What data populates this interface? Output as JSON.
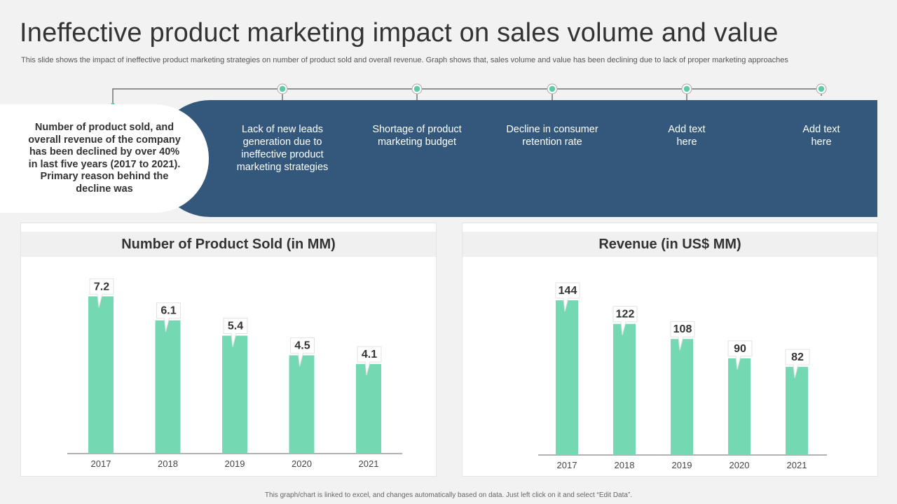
{
  "page": {
    "title": "Ineffective product marketing impact on sales volume and value",
    "subtitle": "This slide shows the impact of ineffective  product marketing strategies on number of product sold and overall revenue.  Graph shows that, sales volume and value has been declining due to lack of proper marketing approaches",
    "footer": "This graph/chart is linked to excel, and changes automatically based on data. Just left click on it and select “Edit Data”."
  },
  "intro": {
    "text": "Number of product sold, and overall revenue of the company has been declined by over 40% in last five years (2017 to 2021). Primary reason behind the decline was"
  },
  "reasons": [
    {
      "text": "Lack of new leads generation due to ineffective product marketing strategies"
    },
    {
      "text": "Shortage of product marketing budget"
    },
    {
      "text": "Decline in consumer retention rate"
    },
    {
      "text": "Add text here"
    },
    {
      "text": "Add text here"
    }
  ],
  "colors": {
    "bar": "#74d9b3",
    "banner": "#33587c",
    "accent": "#5fcaa6"
  },
  "chart_data": [
    {
      "type": "bar",
      "title": "Number of Product Sold (in MM)",
      "categories": [
        "2017",
        "2018",
        "2019",
        "2020",
        "2021"
      ],
      "values": [
        7.2,
        6.1,
        5.4,
        4.5,
        4.1
      ],
      "labels": [
        "7.2",
        "6.1",
        "5.4",
        "4.5",
        "4.1"
      ],
      "ylim": [
        0,
        10
      ],
      "xlabel": "",
      "ylabel": "",
      "grid": false
    },
    {
      "type": "bar",
      "title": "Revenue (in US$ MM)",
      "categories": [
        "2017",
        "2018",
        "2019",
        "2020",
        "2021"
      ],
      "values": [
        144,
        122,
        108,
        90,
        82
      ],
      "labels": [
        "144",
        "122",
        "108",
        "90",
        "82"
      ],
      "ylim": [
        0,
        200
      ],
      "xlabel": "",
      "ylabel": "",
      "grid": false
    }
  ]
}
